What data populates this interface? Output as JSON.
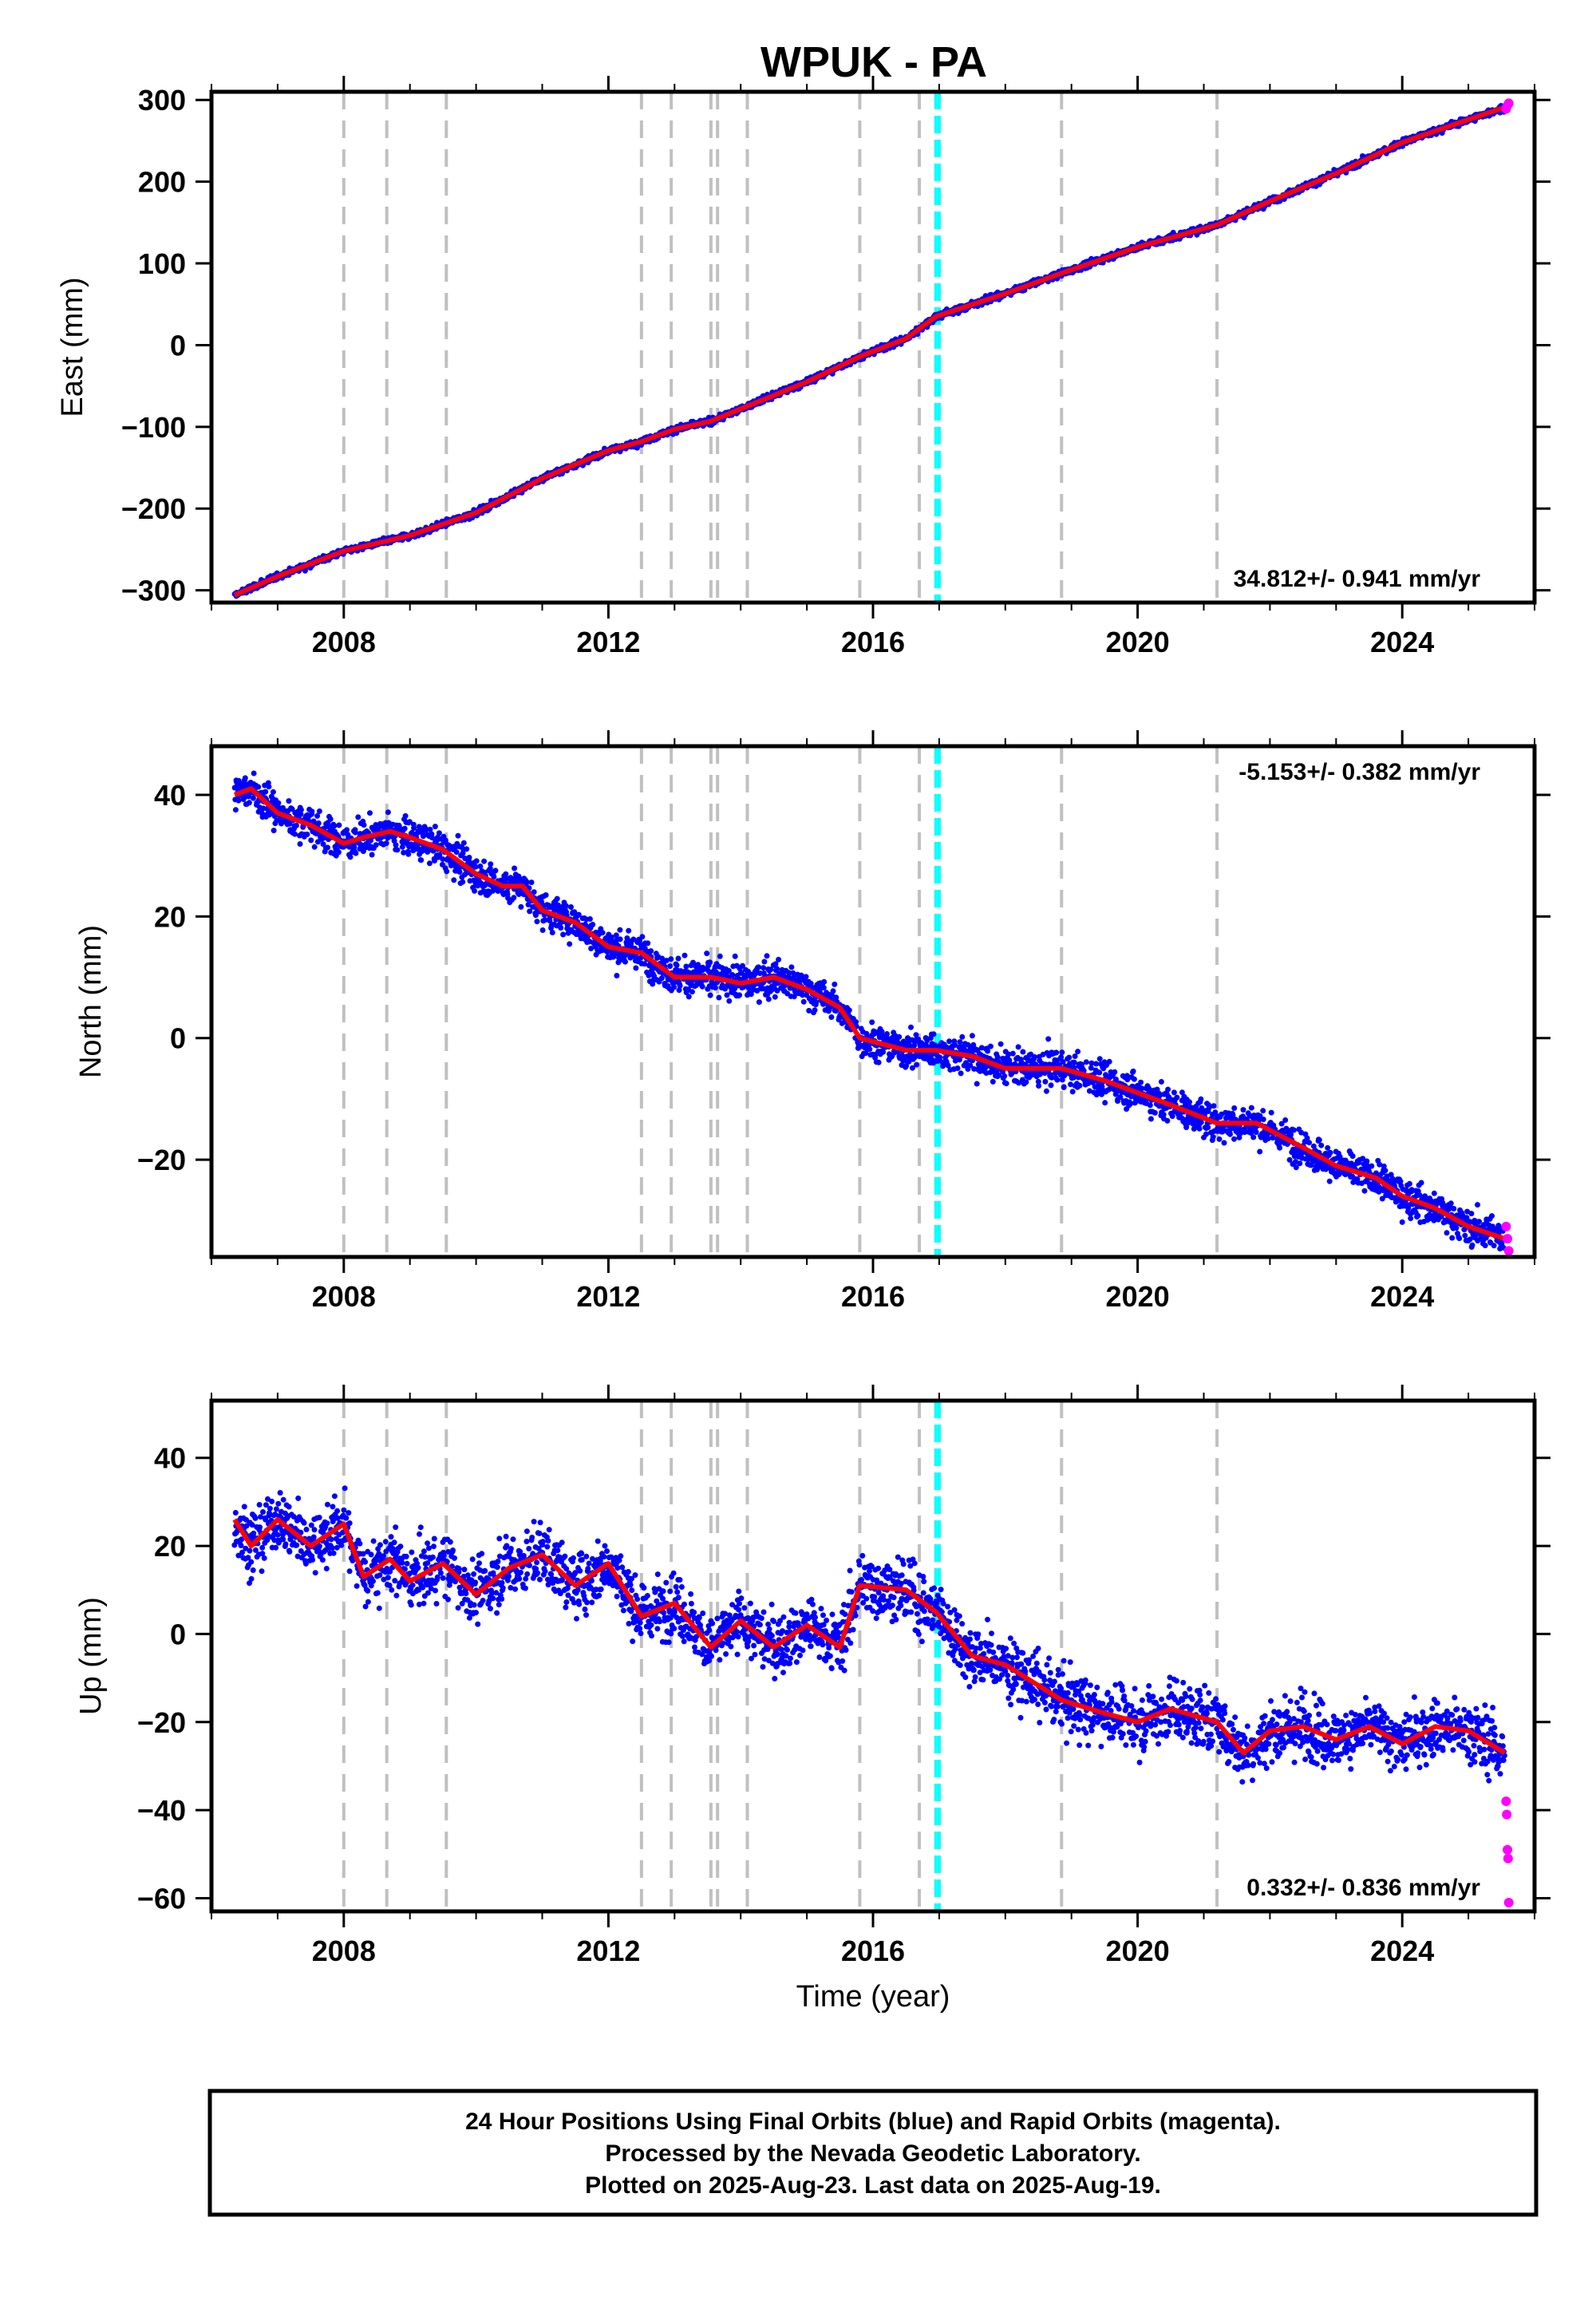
{
  "title": "WPUK - PA",
  "x_axis_label": "Time (year)",
  "colors": {
    "final_orbits": "#0000ff",
    "rapid_orbits": "#ff00ff",
    "model": "#ff0000",
    "equipment_change": "#c0c0c0",
    "earthquake": "#00ffff"
  },
  "footer": [
    "24 Hour Positions Using Final Orbits (blue) and Rapid Orbits (magenta).",
    "Processed by the Nevada Geodetic Laboratory.",
    "Plotted on 2025-Aug-23. Last data on 2025-Aug-19."
  ],
  "chart_data": [
    {
      "type": "scatter",
      "ylabel": "East (mm)",
      "rate_label": "34.812+/- 0.941 mm/yr",
      "rate_position": "bottom-right",
      "xlim": [
        2006.0,
        2026.0
      ],
      "ylim": [
        -315,
        310
      ],
      "xticks": [
        2008,
        2012,
        2016,
        2020,
        2024
      ],
      "yticks": [
        -300,
        -200,
        -100,
        0,
        100,
        200,
        300
      ],
      "ytick_labels": [
        "−300",
        "−200",
        "−100",
        "0",
        "100",
        "200",
        "300"
      ],
      "model_series": {
        "x": [
          2006.35,
          2007.0,
          2008.0,
          2009.0,
          2010.0,
          2011.0,
          2012.0,
          2012.5,
          2013.0,
          2013.55,
          2014.0,
          2015.0,
          2015.8,
          2016.5,
          2016.95,
          2018.0,
          2018.85,
          2020.0,
          2021.2,
          2022.0,
          2023.0,
          2024.0,
          2025.0,
          2025.55
        ],
        "y": [
          -306,
          -283,
          -252,
          -233,
          -205,
          -163,
          -129,
          -118,
          -103,
          -93,
          -78,
          -45,
          -14,
          8,
          35,
          63,
          88,
          120,
          147,
          176,
          210,
          248,
          276,
          291
        ]
      },
      "rapid_points": {
        "x": [
          2025.57,
          2025.59,
          2025.61
        ],
        "y": [
          289,
          293,
          296
        ]
      }
    },
    {
      "type": "scatter",
      "ylabel": "North (mm)",
      "rate_label": "-5.153+/- 0.382 mm/yr",
      "rate_position": "top-right",
      "xlim": [
        2006.0,
        2026.0
      ],
      "ylim": [
        -36,
        48
      ],
      "xticks": [
        2008,
        2012,
        2016,
        2020,
        2024
      ],
      "yticks": [
        -20,
        0,
        20,
        40
      ],
      "ytick_labels": [
        "−20",
        "0",
        "20",
        "40"
      ],
      "model_series": {
        "x": [
          2006.35,
          2006.6,
          2007.0,
          2007.5,
          2008.0,
          2008.3,
          2008.7,
          2009.0,
          2009.5,
          2010.0,
          2010.4,
          2010.7,
          2011.0,
          2011.5,
          2012.0,
          2012.5,
          2013.0,
          2013.55,
          2014.0,
          2014.5,
          2015.0,
          2015.5,
          2015.8,
          2016.5,
          2016.95,
          2017.5,
          2018.0,
          2018.85,
          2019.5,
          2020.0,
          2020.5,
          2021.2,
          2021.8,
          2022.5,
          2023.0,
          2023.6,
          2024.0,
          2024.5,
          2025.0,
          2025.55
        ],
        "y": [
          40,
          41,
          37,
          35,
          32,
          33,
          34,
          33,
          31,
          27,
          25,
          25,
          21,
          19,
          15,
          14,
          10,
          10,
          9,
          10,
          8,
          5,
          0,
          -2,
          -2,
          -3,
          -5,
          -5,
          -7,
          -9,
          -11,
          -14,
          -14,
          -18,
          -21,
          -23,
          -26,
          -28,
          -31,
          -33
        ]
      },
      "rapid_points": {
        "x": [
          2025.57,
          2025.59,
          2025.61
        ],
        "y": [
          -31,
          -33,
          -35
        ]
      }
    },
    {
      "type": "scatter",
      "ylabel": "Up (mm)",
      "rate_label": "0.332+/- 0.836 mm/yr",
      "rate_position": "bottom-right",
      "xlim": [
        2006.0,
        2026.0
      ],
      "ylim": [
        -63,
        53
      ],
      "xticks": [
        2008,
        2012,
        2016,
        2020,
        2024
      ],
      "yticks": [
        -60,
        -40,
        -20,
        0,
        20,
        40
      ],
      "ytick_labels": [
        "−60",
        "−40",
        "−20",
        "0",
        "20",
        "40"
      ],
      "model_series": {
        "x": [
          2006.35,
          2006.6,
          2007.0,
          2007.5,
          2008.0,
          2008.3,
          2008.7,
          2009.0,
          2009.5,
          2010.0,
          2010.5,
          2011.0,
          2011.5,
          2012.0,
          2012.5,
          2013.0,
          2013.55,
          2014.0,
          2014.5,
          2015.0,
          2015.5,
          2015.8,
          2016.5,
          2016.95,
          2017.5,
          2018.0,
          2018.85,
          2019.5,
          2020.0,
          2020.5,
          2021.2,
          2021.6,
          2022.0,
          2022.5,
          2023.0,
          2023.5,
          2024.0,
          2024.5,
          2025.0,
          2025.55
        ],
        "y": [
          26,
          20,
          26,
          20,
          25,
          13,
          17,
          12,
          16,
          9,
          15,
          18,
          11,
          16,
          4,
          7,
          -3,
          3,
          -3,
          2,
          -3,
          11,
          10,
          5,
          -5,
          -7,
          -15,
          -18,
          -20,
          -17,
          -20,
          -27,
          -22,
          -21,
          -24,
          -21,
          -25,
          -21,
          -22,
          -27
        ]
      },
      "rapid_points": {
        "x": [
          2025.57,
          2025.58,
          2025.59,
          2025.6,
          2025.61
        ],
        "y": [
          -38,
          -41,
          -49,
          -51,
          -61
        ]
      }
    }
  ],
  "equipment_changes": [
    2008.0,
    2008.65,
    2009.55,
    2012.5,
    2012.95,
    2013.55,
    2013.65,
    2014.1,
    2015.8,
    2016.7,
    2018.85,
    2021.2
  ],
  "earthquakes": [
    2016.95,
    2017.0
  ]
}
